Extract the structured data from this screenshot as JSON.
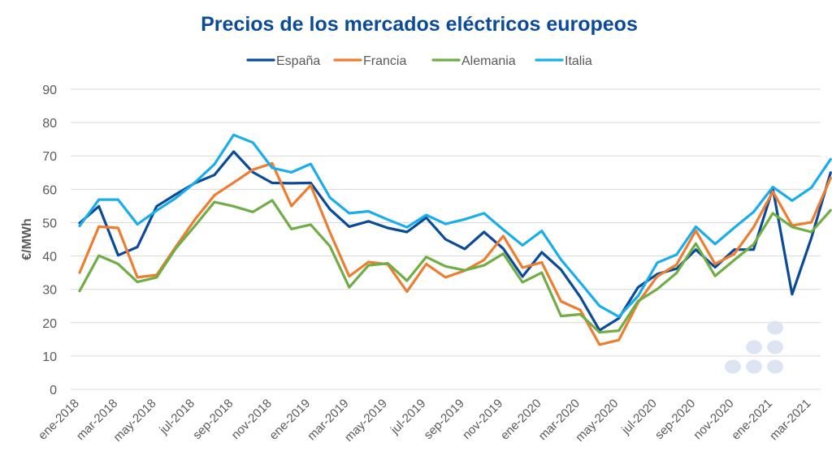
{
  "chart_data": {
    "type": "line",
    "title": "Precios de los mercados eléctricos europeos",
    "ylabel": "€/MWh",
    "xlabel": "",
    "ylim": [
      0,
      90
    ],
    "yticks": [
      0,
      10,
      20,
      30,
      40,
      50,
      60,
      70,
      80,
      90
    ],
    "grid": true,
    "legend_position": "top",
    "x": [
      "ene-2018",
      "feb-2018",
      "mar-2018",
      "abr-2018",
      "may-2018",
      "jun-2018",
      "jul-2018",
      "ago-2018",
      "sep-2018",
      "oct-2018",
      "nov-2018",
      "dic-2018",
      "ene-2019",
      "feb-2019",
      "mar-2019",
      "abr-2019",
      "may-2019",
      "jun-2019",
      "jul-2019",
      "ago-2019",
      "sep-2019",
      "oct-2019",
      "nov-2019",
      "dic-2019",
      "ene-2020",
      "feb-2020",
      "mar-2020",
      "abr-2020",
      "may-2020",
      "jun-2020",
      "jul-2020",
      "ago-2020",
      "sep-2020",
      "oct-2020",
      "nov-2020",
      "dic-2020",
      "ene-2021",
      "feb-2021",
      "mar-2021",
      "abr-2021"
    ],
    "xtick_labels": [
      "ene-2018",
      "mar-2018",
      "may-2018",
      "jul-2018",
      "sep-2018",
      "nov-2018",
      "ene-2019",
      "mar-2019",
      "may-2019",
      "jul-2019",
      "sep-2019",
      "nov-2019",
      "ene-2020",
      "mar-2020",
      "may-2020",
      "jul-2020",
      "sep-2020",
      "nov-2020",
      "ene-2021",
      "mar-2021"
    ],
    "series": [
      {
        "name": "España",
        "color": "#0b4a99",
        "values": [
          49.9,
          54.9,
          40.2,
          42.7,
          54.9,
          58.5,
          61.9,
          64.3,
          71.3,
          65.1,
          61.9,
          61.8,
          61.9,
          54.0,
          48.8,
          50.4,
          48.4,
          47.2,
          51.5,
          45.0,
          42.1,
          47.2,
          42.2,
          33.8,
          41.1,
          35.9,
          27.7,
          17.7,
          21.3,
          30.6,
          34.6,
          36.2,
          41.9,
          36.6,
          41.9,
          41.9,
          60.2,
          28.5,
          45.4,
          65.0
        ]
      },
      {
        "name": "Francia",
        "color": "#ed7d31",
        "values": [
          35.0,
          48.8,
          48.4,
          33.6,
          34.3,
          42.8,
          51.0,
          58.2,
          62.0,
          65.9,
          67.8,
          55.0,
          61.2,
          47.1,
          33.9,
          38.2,
          37.5,
          29.3,
          37.6,
          33.6,
          35.6,
          38.8,
          46.0,
          36.5,
          38.1,
          26.4,
          23.8,
          13.4,
          14.8,
          26.0,
          33.9,
          37.4,
          47.6,
          37.6,
          40.6,
          48.6,
          59.3,
          49.1,
          50.1,
          63.4
        ]
      },
      {
        "name": "Alemania",
        "color": "#70ad47",
        "values": [
          29.5,
          40.1,
          37.6,
          32.2,
          33.6,
          42.3,
          49.1,
          56.2,
          54.9,
          53.2,
          56.7,
          48.1,
          49.4,
          42.9,
          30.6,
          37.2,
          37.8,
          32.6,
          39.7,
          36.9,
          35.7,
          37.2,
          40.7,
          32.1,
          35.0,
          22.0,
          22.5,
          17.1,
          17.6,
          26.5,
          30.1,
          34.9,
          43.7,
          34.0,
          38.8,
          43.5,
          52.8,
          48.7,
          47.2,
          53.7
        ]
      },
      {
        "name": "Italia",
        "color": "#1aadeb",
        "values": [
          49.0,
          56.9,
          56.9,
          49.5,
          53.6,
          57.4,
          62.1,
          67.5,
          76.3,
          74.0,
          66.4,
          65.1,
          67.6,
          57.5,
          52.8,
          53.4,
          50.9,
          48.6,
          52.3,
          49.6,
          51.0,
          52.8,
          47.9,
          43.2,
          47.5,
          38.9,
          32.0,
          25.0,
          21.8,
          28.0,
          38.0,
          40.4,
          48.8,
          43.6,
          48.5,
          53.2,
          60.7,
          56.6,
          60.5,
          69.0
        ]
      }
    ]
  },
  "colors": {
    "title": "#0b4a99",
    "axis_text": "#595959",
    "grid": "#d9d9d9",
    "decor_dots": "#dde5f2"
  }
}
